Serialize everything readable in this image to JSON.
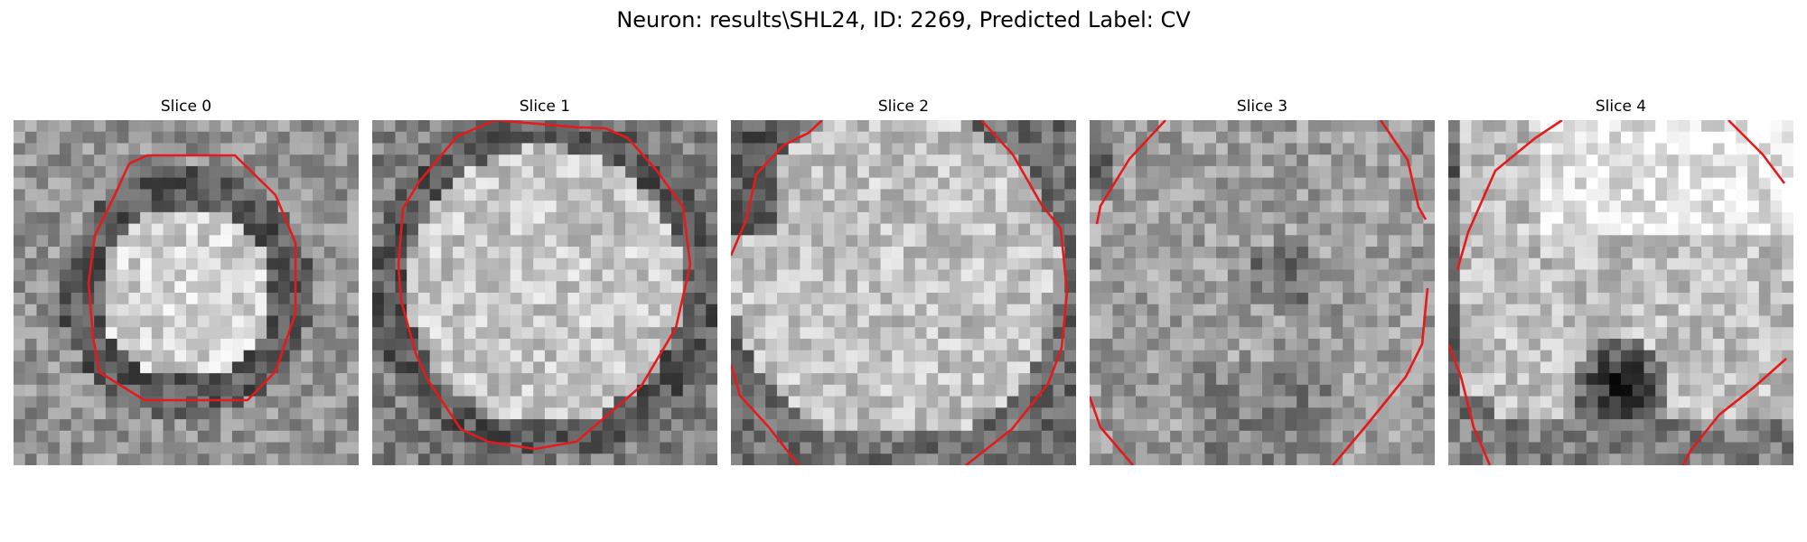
{
  "title": "Neuron: results\\SHL24, ID: 2269, Predicted Label: CV",
  "panels": [
    {
      "label": "Slice 0"
    },
    {
      "label": "Slice 1"
    },
    {
      "label": "Slice 2"
    },
    {
      "label": "Slice 3"
    },
    {
      "label": "Slice 4"
    }
  ],
  "colors": {
    "contour": "#e41a1c",
    "background": "#ffffff"
  },
  "image_style": "grayscale-microscopy-patch"
}
